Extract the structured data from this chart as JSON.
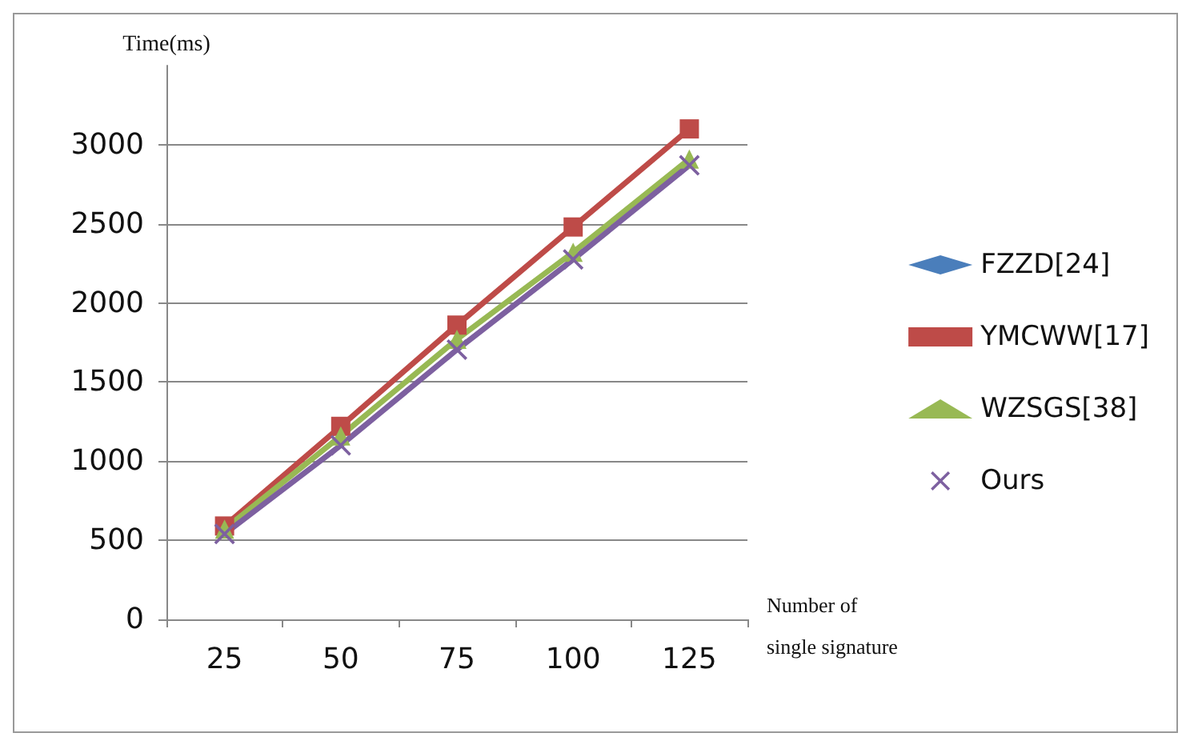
{
  "chart_data": {
    "type": "line",
    "ylabel": "Time(ms)",
    "xlabel": "Number of\nsingle signature",
    "categories": [
      "25",
      "50",
      "75",
      "100",
      "125"
    ],
    "series": [
      {
        "name": "FZZD[24]",
        "color": "#4a7ebb",
        "marker": "diamond",
        "values": [
          null,
          null,
          null,
          null,
          null
        ]
      },
      {
        "name": "YMCWW[17]",
        "color": "#be4b48",
        "marker": "square",
        "values": [
          590,
          1220,
          1860,
          2480,
          3100
        ]
      },
      {
        "name": "WZSGS[38]",
        "color": "#98b954",
        "marker": "triangle",
        "values": [
          570,
          1160,
          1770,
          2320,
          2910
        ]
      },
      {
        "name": "Ours",
        "color": "#7d60a0",
        "marker": "cross",
        "values": [
          540,
          1100,
          1705,
          2275,
          2870
        ]
      }
    ],
    "ylim": [
      0,
      3500
    ],
    "yticks": [
      0,
      500,
      1000,
      1500,
      2000,
      2500,
      3000
    ],
    "grid": "y",
    "legend": "right",
    "line_style": "solid"
  }
}
